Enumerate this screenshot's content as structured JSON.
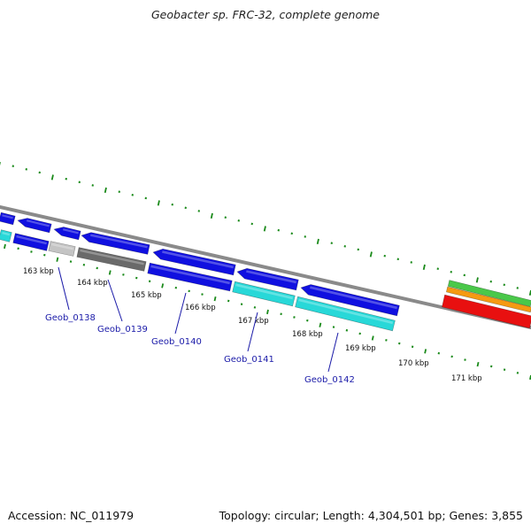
{
  "title": "Geobacter sp. FRC-32, complete genome",
  "footer": {
    "accession": "Accession: NC_011979",
    "summary": "Topology: circular; Length: 4,304,501 bp; Genes: 3,855"
  },
  "colors": {
    "cds_forward": "#1010e0",
    "cds_reverse": "#1010e0",
    "cds_cyan": "#28d8d8",
    "cds_gray": "#6a6a6a",
    "cds_lightgray": "#c4c4c4",
    "tick_green": "#1a8a1a",
    "backbone": "#8a8a8a",
    "rrna_red": "#e81010",
    "rrna_orange": "#f59a12",
    "rrna_green": "#4ac84a",
    "label_blue": "#1a1aa8"
  },
  "kbp_ticks": [
    "163 kbp",
    "164 kbp",
    "165 kbp",
    "166 kbp",
    "167 kbp",
    "168 kbp",
    "169 kbp",
    "170 kbp",
    "171 kbp"
  ],
  "gene_labels": [
    "Geob_0138",
    "Geob_0139",
    "Geob_0140",
    "Geob_0141",
    "Geob_0142"
  ]
}
